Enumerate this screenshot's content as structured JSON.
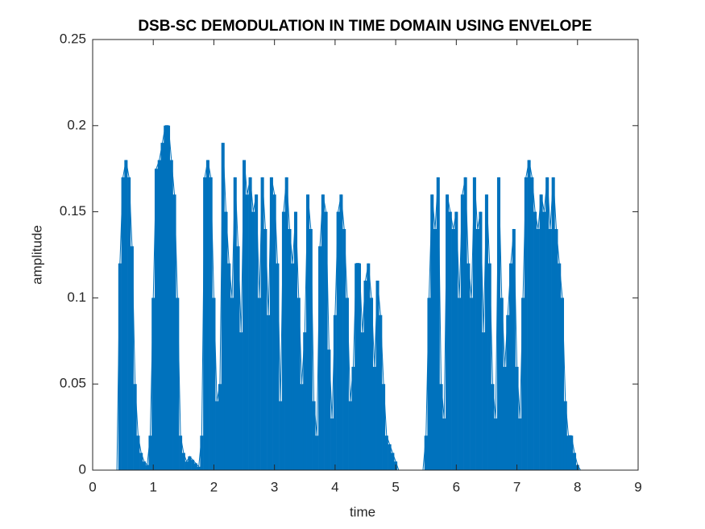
{
  "chart_data": {
    "type": "line",
    "title": "DSB-SC DEMODULATION IN TIME DOMAIN USING ENVELOPE",
    "xlabel": "time",
    "ylabel": "amplitude",
    "color": "#0072bd",
    "xlim": [
      0,
      9
    ],
    "xticks": [
      0,
      1,
      2,
      3,
      4,
      5,
      6,
      7,
      8,
      9
    ],
    "ylim": [
      0,
      0.25
    ],
    "yticks": [
      0,
      0.05,
      0.1,
      0.15,
      0.2,
      0.25
    ],
    "x": [
      0,
      0.05,
      0.1,
      0.15,
      0.2,
      0.25,
      0.3,
      0.35,
      0.4,
      0.45,
      0.5,
      0.55,
      0.6,
      0.65,
      0.7,
      0.75,
      0.8,
      0.85,
      0.9,
      0.95,
      1.0,
      1.05,
      1.1,
      1.15,
      1.2,
      1.25,
      1.3,
      1.35,
      1.4,
      1.45,
      1.5,
      1.55,
      1.6,
      1.65,
      1.7,
      1.75,
      1.8,
      1.85,
      1.9,
      1.95,
      2.0,
      2.05,
      2.1,
      2.15,
      2.2,
      2.25,
      2.3,
      2.35,
      2.4,
      2.45,
      2.5,
      2.55,
      2.6,
      2.65,
      2.7,
      2.75,
      2.8,
      2.85,
      2.9,
      2.95,
      3.0,
      3.05,
      3.1,
      3.15,
      3.2,
      3.25,
      3.3,
      3.35,
      3.4,
      3.45,
      3.5,
      3.55,
      3.6,
      3.65,
      3.7,
      3.75,
      3.8,
      3.85,
      3.9,
      3.95,
      4.0,
      4.05,
      4.1,
      4.15,
      4.2,
      4.25,
      4.3,
      4.35,
      4.4,
      4.45,
      4.5,
      4.55,
      4.6,
      4.65,
      4.7,
      4.75,
      4.8,
      4.85,
      4.9,
      4.95,
      5.0,
      5.05,
      5.1,
      5.15,
      5.2,
      5.25,
      5.3,
      5.35,
      5.4,
      5.45,
      5.5,
      5.55,
      5.6,
      5.65,
      5.7,
      5.75,
      5.8,
      5.85,
      5.9,
      5.95,
      6.0,
      6.05,
      6.1,
      6.15,
      6.2,
      6.25,
      6.3,
      6.35,
      6.4,
      6.45,
      6.5,
      6.55,
      6.6,
      6.65,
      6.7,
      6.75,
      6.8,
      6.85,
      6.9,
      6.95,
      7.0,
      7.05,
      7.1,
      7.15,
      7.2,
      7.25,
      7.3,
      7.35,
      7.4,
      7.45,
      7.5,
      7.55,
      7.6,
      7.65,
      7.7,
      7.75,
      7.8,
      7.85,
      7.9,
      7.95,
      8.0,
      8.05,
      8.1,
      8.15,
      8.2,
      8.25,
      8.3,
      8.35,
      8.4,
      8.45,
      8.5,
      8.55,
      8.6
    ],
    "values": [
      0,
      0,
      0,
      0,
      0,
      0,
      0,
      0,
      0,
      0.12,
      0.17,
      0.18,
      0.17,
      0.13,
      0.05,
      0.02,
      0.01,
      0.005,
      0.003,
      0.02,
      0.1,
      0.175,
      0.18,
      0.19,
      0.2,
      0.2,
      0.18,
      0.16,
      0.1,
      0.02,
      0.01,
      0.005,
      0.008,
      0.006,
      0.004,
      0.002,
      0.02,
      0.17,
      0.18,
      0.17,
      0.1,
      0.04,
      0.05,
      0.19,
      0.15,
      0.12,
      0.1,
      0.17,
      0.13,
      0.08,
      0.18,
      0.16,
      0.17,
      0.15,
      0.16,
      0.1,
      0.17,
      0.14,
      0.09,
      0.17,
      0.16,
      0.12,
      0.04,
      0.15,
      0.17,
      0.14,
      0.12,
      0.15,
      0.1,
      0.05,
      0.08,
      0.16,
      0.14,
      0.04,
      0.02,
      0.13,
      0.16,
      0.15,
      0.07,
      0.03,
      0.09,
      0.15,
      0.16,
      0.14,
      0.1,
      0.04,
      0.06,
      0.12,
      0.12,
      0.08,
      0.11,
      0.12,
      0.1,
      0.06,
      0.11,
      0.09,
      0.05,
      0.02,
      0.015,
      0.01,
      0.005,
      0,
      0,
      0,
      0,
      0,
      0,
      0,
      0,
      0,
      0.02,
      0.1,
      0.16,
      0.14,
      0.17,
      0.05,
      0.03,
      0.16,
      0.15,
      0.14,
      0.15,
      0.1,
      0.16,
      0.17,
      0.12,
      0.1,
      0.17,
      0.14,
      0.15,
      0.08,
      0.16,
      0.12,
      0.05,
      0.03,
      0.17,
      0.1,
      0.06,
      0.09,
      0.12,
      0.14,
      0.06,
      0.03,
      0.1,
      0.17,
      0.18,
      0.17,
      0.15,
      0.14,
      0.16,
      0.15,
      0.17,
      0.14,
      0.17,
      0.14,
      0.12,
      0.1,
      0.04,
      0.02,
      0.02,
      0.01,
      0.003,
      0,
      0,
      0,
      0,
      0,
      0,
      0,
      0,
      0,
      0,
      0,
      0
    ]
  }
}
